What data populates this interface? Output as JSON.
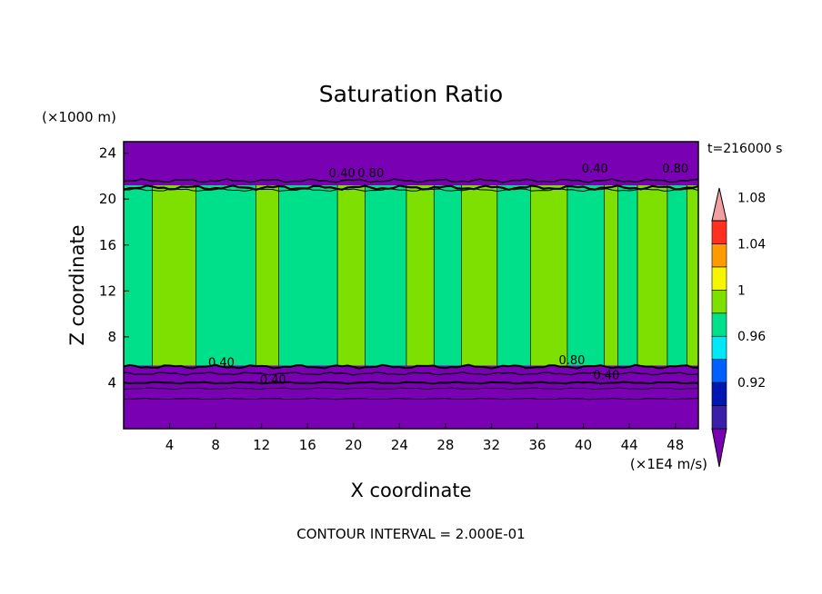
{
  "chart_data": {
    "type": "heatmap",
    "title": "Saturation Ratio",
    "xlabel": "X coordinate",
    "ylabel": "Z coordinate",
    "x_unit": "(×1E4 m/s)",
    "y_unit": "(×1000 m)",
    "time_label": "t=216000 s",
    "footer": "CONTOUR INTERVAL = 2.000E-01",
    "xlim": [
      0,
      50
    ],
    "ylim": [
      0,
      25
    ],
    "x_ticks": [
      "4",
      "8",
      "12",
      "16",
      "20",
      "24",
      "28",
      "32",
      "36",
      "40",
      "44",
      "48"
    ],
    "y_ticks": [
      "4",
      "8",
      "12",
      "16",
      "20",
      "24"
    ],
    "colorbar": {
      "colors": [
        "#7a00b4",
        "#3a1fa8",
        "#0018b0",
        "#0060ff",
        "#00e8f8",
        "#00e08a",
        "#7ee000",
        "#f6f600",
        "#ff9a00",
        "#ff3020",
        "#f0a0a0"
      ],
      "labels": [
        "0.92",
        "0.96",
        "1",
        "1.04",
        "1.08"
      ],
      "extend": "both"
    },
    "contour_labels": [
      "0.40",
      "0.80",
      "0.40",
      "0.80",
      "0.40",
      "0.40",
      "0.80",
      "0.40"
    ],
    "layers": [
      {
        "z_range": [
          0,
          5.5
        ],
        "value_range": [
          0.0,
          0.9
        ],
        "color": "#7a00b4"
      },
      {
        "z_range": [
          5.5,
          21.2
        ],
        "value_range": [
          0.98,
          1.02
        ],
        "color": "#00e08a"
      },
      {
        "z_range": [
          21.2,
          25
        ],
        "value_range": [
          0.0,
          0.9
        ],
        "color": "#7a00b4"
      }
    ],
    "columns": [
      {
        "x": [
          0,
          2.5
        ],
        "value": "0.98-1.0"
      },
      {
        "x": [
          2.5,
          6.3
        ],
        "value": "1.0-1.02"
      },
      {
        "x": [
          6.3,
          11.5
        ],
        "value": "0.98-1.0"
      },
      {
        "x": [
          11.5,
          13.5
        ],
        "value": "1.0-1.02"
      },
      {
        "x": [
          13.5,
          18.6
        ],
        "value": "0.98-1.0"
      },
      {
        "x": [
          18.6,
          21
        ],
        "value": "1.0-1.02"
      },
      {
        "x": [
          21,
          24.6
        ],
        "value": "0.98-1.0"
      },
      {
        "x": [
          24.6,
          27
        ],
        "value": "1.0-1.02"
      },
      {
        "x": [
          27,
          29.4
        ],
        "value": "0.98-1.0"
      },
      {
        "x": [
          29.4,
          32.5
        ],
        "value": "1.0-1.02"
      },
      {
        "x": [
          32.5,
          35.4
        ],
        "value": "0.98-1.0"
      },
      {
        "x": [
          35.4,
          38.6
        ],
        "value": "1.0-1.02"
      },
      {
        "x": [
          38.6,
          41.8
        ],
        "value": "0.98-1.0"
      },
      {
        "x": [
          41.8,
          43
        ],
        "value": "1.0-1.02"
      },
      {
        "x": [
          43,
          44.7
        ],
        "value": "0.98-1.0"
      },
      {
        "x": [
          44.7,
          47.3
        ],
        "value": "1.0-1.02"
      },
      {
        "x": [
          47.3,
          49
        ],
        "value": "0.98-1.0"
      },
      {
        "x": [
          49,
          50
        ],
        "value": "1.0-1.02"
      }
    ]
  }
}
